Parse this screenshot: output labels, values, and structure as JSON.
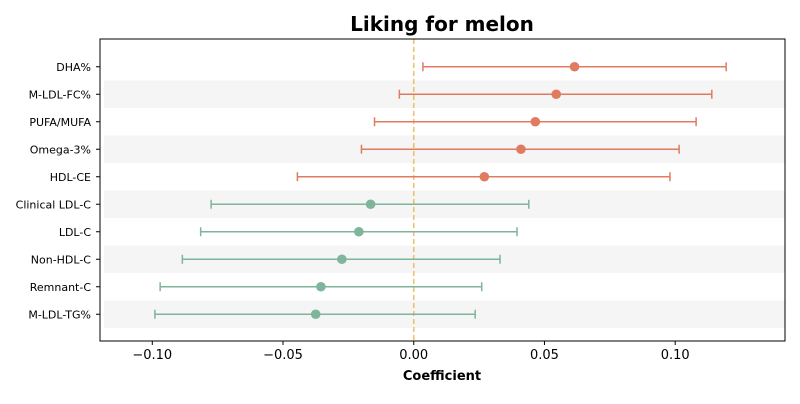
{
  "chart_data": {
    "type": "forest",
    "title": "Liking for melon",
    "xlabel": "Coefficient",
    "ylabel": "",
    "xlim": [
      -0.12,
      0.142
    ],
    "x_ticks": [
      -0.1,
      -0.05,
      0.0,
      0.05,
      0.1
    ],
    "x_tick_labels": [
      "−0.10",
      "−0.05",
      "0.00",
      "0.05",
      "0.10"
    ],
    "reference_line": {
      "x": 0.0,
      "color": "#f0c070",
      "style": "dashed"
    },
    "grid": false,
    "row_banding": true,
    "colors": {
      "positive": "#e07b5f",
      "negative": "#7fb59a",
      "band": "#f5f5f5"
    },
    "rows": [
      {
        "label": "DHA%",
        "estimate": 0.0615,
        "ci_low": 0.0035,
        "ci_high": 0.1195,
        "group": "positive"
      },
      {
        "label": "M-LDL-FC%",
        "estimate": 0.0545,
        "ci_low": -0.0055,
        "ci_high": 0.114,
        "group": "positive"
      },
      {
        "label": "PUFA/MUFA",
        "estimate": 0.0465,
        "ci_low": -0.015,
        "ci_high": 0.108,
        "group": "positive"
      },
      {
        "label": "Omega-3%",
        "estimate": 0.041,
        "ci_low": -0.02,
        "ci_high": 0.1015,
        "group": "positive"
      },
      {
        "label": "HDL-CE",
        "estimate": 0.027,
        "ci_low": -0.0445,
        "ci_high": 0.098,
        "group": "positive"
      },
      {
        "label": "Clinical LDL-C",
        "estimate": -0.0165,
        "ci_low": -0.0775,
        "ci_high": 0.044,
        "group": "negative"
      },
      {
        "label": "LDL-C",
        "estimate": -0.021,
        "ci_low": -0.0815,
        "ci_high": 0.0395,
        "group": "negative"
      },
      {
        "label": "Non-HDL-C",
        "estimate": -0.0275,
        "ci_low": -0.0885,
        "ci_high": 0.033,
        "group": "negative"
      },
      {
        "label": "Remnant-C",
        "estimate": -0.0355,
        "ci_low": -0.097,
        "ci_high": 0.026,
        "group": "negative"
      },
      {
        "label": "M-LDL-TG%",
        "estimate": -0.0375,
        "ci_low": -0.099,
        "ci_high": 0.0235,
        "group": "negative"
      }
    ]
  }
}
